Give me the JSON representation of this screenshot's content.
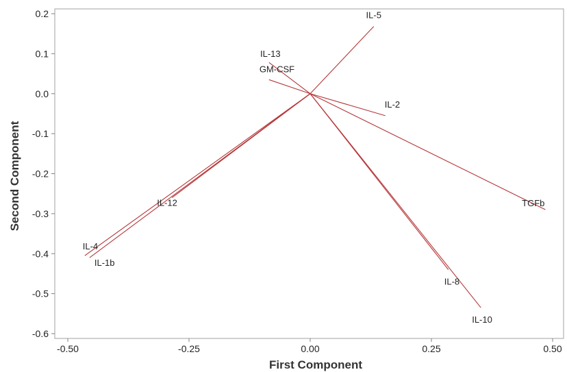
{
  "chart_data": {
    "type": "biplot",
    "xlabel": "First Component",
    "ylabel": "Second Component",
    "xlim": [
      -0.52,
      0.52
    ],
    "ylim": [
      -0.61,
      0.22
    ],
    "xticks": [
      -0.5,
      -0.25,
      0.0,
      0.25,
      0.5
    ],
    "xtick_labels": [
      "-0.50",
      "-0.25",
      "0.00",
      "0.25",
      "0.50"
    ],
    "yticks": [
      0.2,
      0.1,
      0.0,
      -0.1,
      -0.2,
      -0.3,
      -0.4,
      -0.5,
      -0.6
    ],
    "ytick_labels": [
      "0.2",
      "0.1",
      "0.0",
      "-0.1",
      "-0.2",
      "-0.3",
      "-0.4",
      "-0.5",
      "-0.6"
    ],
    "grid": false,
    "line_color": "#b5373a",
    "loadings": [
      {
        "label": "IL-5",
        "x": 0.131,
        "y": 0.168
      },
      {
        "label": "IL-13",
        "x": -0.085,
        "y": 0.078
      },
      {
        "label": "GM-CSF",
        "x": -0.085,
        "y": 0.035
      },
      {
        "label": "IL-2",
        "x": 0.155,
        "y": -0.055
      },
      {
        "label": "TGFb",
        "x": 0.485,
        "y": -0.29
      },
      {
        "label": "IL-12",
        "x": -0.285,
        "y": -0.26
      },
      {
        "label": "IL-4",
        "x": -0.465,
        "y": -0.405
      },
      {
        "label": "IL-1b",
        "x": -0.455,
        "y": -0.41
      },
      {
        "label": "IL-8",
        "x": 0.285,
        "y": -0.44
      },
      {
        "label": "IL-10",
        "x": 0.352,
        "y": -0.535
      }
    ]
  }
}
